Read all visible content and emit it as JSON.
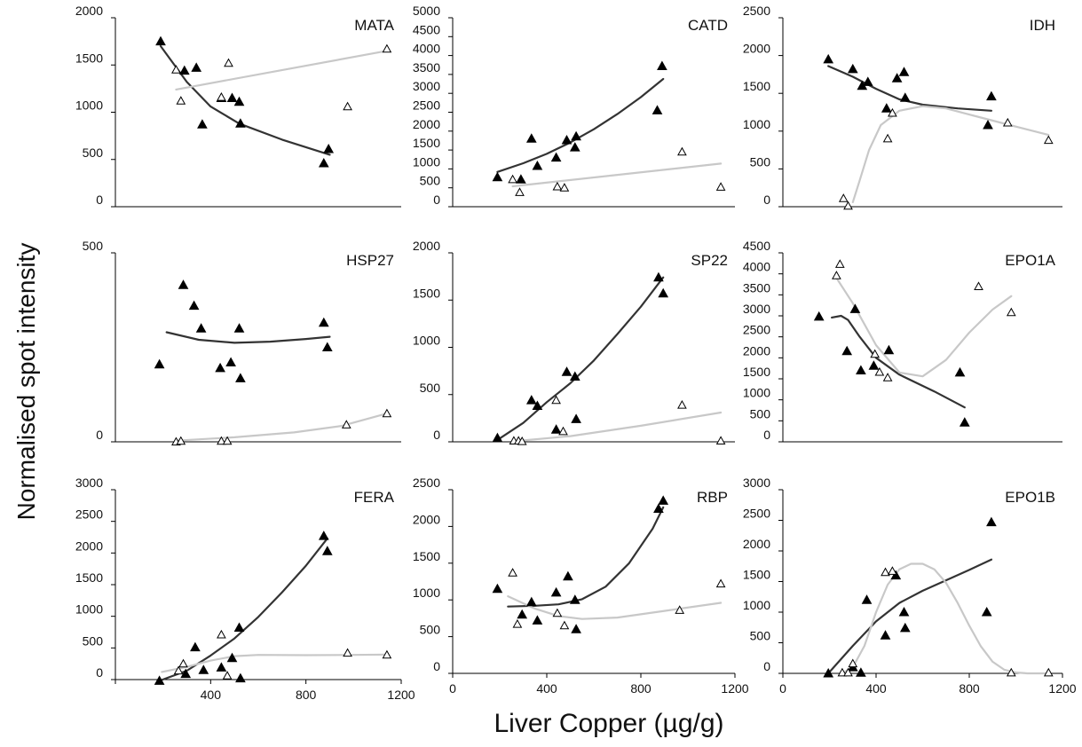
{
  "figure": {
    "ylabel": "Normalised spot intensity",
    "xlabel": "Liver Copper (µg/g)"
  },
  "chart_data": [
    {
      "type": "scatter",
      "title": "MATA",
      "xlim": [
        0,
        1200
      ],
      "ylim": [
        0,
        2000
      ],
      "yticks": [
        0,
        500,
        1000,
        1500,
        2000
      ],
      "xticks": [],
      "ytick_labels": [
        "0",
        "500",
        "1000",
        "1500",
        "2000"
      ],
      "series": [
        {
          "marker": "filled-triangle",
          "color": "#000000",
          "x": [
            190,
            290,
            340,
            365,
            445,
            490,
            520,
            525,
            875,
            895
          ],
          "y": [
            1750,
            1440,
            1470,
            870,
            1150,
            1150,
            1110,
            880,
            460,
            610
          ]
        },
        {
          "marker": "open-triangle",
          "color": "#000000",
          "x": [
            255,
            275,
            445,
            475,
            975,
            1140
          ],
          "y": [
            1450,
            1120,
            1160,
            1520,
            1060,
            1670
          ]
        }
      ],
      "fits": [
        {
          "color": "#333333",
          "x": [
            190,
            300,
            400,
            520,
            700,
            900
          ],
          "y": [
            1700,
            1320,
            1060,
            880,
            710,
            550
          ]
        },
        {
          "color": "#c8c8c8",
          "x": [
            255,
            1140
          ],
          "y": [
            1240,
            1650
          ]
        }
      ]
    },
    {
      "type": "scatter",
      "title": "CATD",
      "xlim": [
        0,
        1200
      ],
      "ylim": [
        0,
        5000
      ],
      "yticks": [
        0,
        500,
        1000,
        1500,
        2000,
        2500,
        3000,
        3500,
        4000,
        4500,
        5000
      ],
      "xticks": [],
      "ytick_labels": [
        "0",
        "500",
        "1000",
        "1500",
        "2000",
        "2500",
        "3000",
        "3500",
        "4000",
        "4500",
        "5000"
      ],
      "series": [
        {
          "marker": "filled-triangle",
          "color": "#000000",
          "x": [
            190,
            290,
            335,
            360,
            440,
            485,
            520,
            525,
            870,
            890
          ],
          "y": [
            780,
            720,
            1800,
            1080,
            1300,
            1760,
            1570,
            1860,
            2550,
            3720
          ]
        },
        {
          "marker": "open-triangle",
          "color": "#000000",
          "x": [
            255,
            285,
            445,
            475,
            975,
            1140
          ],
          "y": [
            720,
            380,
            530,
            500,
            1450,
            520
          ]
        }
      ],
      "fits": [
        {
          "color": "#333333",
          "x": [
            190,
            300,
            400,
            500,
            600,
            700,
            800,
            895
          ],
          "y": [
            920,
            1150,
            1400,
            1700,
            2050,
            2450,
            2900,
            3380
          ]
        },
        {
          "color": "#c8c8c8",
          "x": [
            255,
            1140
          ],
          "y": [
            540,
            1140
          ]
        }
      ]
    },
    {
      "type": "scatter",
      "title": "IDH",
      "xlim": [
        0,
        1200
      ],
      "ylim": [
        0,
        2500
      ],
      "yticks": [
        0,
        500,
        1000,
        1500,
        2000,
        2500
      ],
      "xticks": [],
      "ytick_labels": [
        "0",
        "500",
        "1000",
        "1500",
        "2000",
        "2500"
      ],
      "series": [
        {
          "marker": "filled-triangle",
          "color": "#000000",
          "x": [
            195,
            300,
            340,
            365,
            445,
            490,
            520,
            525,
            880,
            895
          ],
          "y": [
            1950,
            1820,
            1600,
            1650,
            1300,
            1700,
            1780,
            1440,
            1080,
            1460
          ]
        },
        {
          "marker": "open-triangle",
          "color": "#000000",
          "x": [
            260,
            280,
            450,
            470,
            965,
            1140
          ],
          "y": [
            110,
            10,
            900,
            1240,
            1110,
            880
          ]
        }
      ],
      "fits": [
        {
          "color": "#333333",
          "x": [
            195,
            300,
            400,
            500,
            600,
            750,
            895
          ],
          "y": [
            1860,
            1720,
            1560,
            1420,
            1350,
            1300,
            1270
          ]
        },
        {
          "color": "#c8c8c8",
          "x": [
            300,
            330,
            370,
            420,
            500,
            600,
            700,
            850,
            1000,
            1140
          ],
          "y": [
            60,
            350,
            750,
            1080,
            1270,
            1330,
            1300,
            1180,
            1060,
            950
          ]
        }
      ]
    },
    {
      "type": "scatter",
      "title": "HSP27",
      "xlim": [
        0,
        1200
      ],
      "ylim": [
        0,
        500
      ],
      "yticks": [
        0,
        500
      ],
      "xticks": [],
      "ytick_labels": [
        "0",
        "500"
      ],
      "series": [
        {
          "marker": "filled-triangle",
          "color": "#000000",
          "x": [
            185,
            285,
            330,
            360,
            440,
            485,
            520,
            525,
            875,
            890
          ],
          "y": [
            205,
            415,
            360,
            300,
            195,
            210,
            300,
            168,
            315,
            250
          ]
        },
        {
          "marker": "open-triangle",
          "color": "#000000",
          "x": [
            255,
            275,
            445,
            470,
            970,
            1140
          ],
          "y": [
            0,
            2,
            2,
            2,
            45,
            75
          ]
        }
      ],
      "fits": [
        {
          "color": "#333333",
          "x": [
            215,
            350,
            500,
            650,
            800,
            900
          ],
          "y": [
            290,
            270,
            262,
            265,
            272,
            278
          ]
        },
        {
          "color": "#c8c8c8",
          "x": [
            255,
            500,
            750,
            950,
            1140
          ],
          "y": [
            3,
            12,
            25,
            42,
            75
          ]
        }
      ]
    },
    {
      "type": "scatter",
      "title": "SP22",
      "xlim": [
        0,
        1200
      ],
      "ylim": [
        0,
        2000
      ],
      "yticks": [
        0,
        500,
        1000,
        1500,
        2000
      ],
      "xticks": [],
      "ytick_labels": [
        "0",
        "500",
        "1000",
        "1500",
        "2000"
      ],
      "series": [
        {
          "marker": "filled-triangle",
          "color": "#000000",
          "x": [
            190,
            335,
            360,
            440,
            485,
            520,
            525,
            875,
            895
          ],
          "y": [
            40,
            440,
            380,
            130,
            740,
            690,
            240,
            1740,
            1570
          ]
        },
        {
          "marker": "open-triangle",
          "color": "#000000",
          "x": [
            260,
            280,
            295,
            440,
            470,
            975,
            1140
          ],
          "y": [
            10,
            10,
            5,
            440,
            110,
            390,
            10
          ]
        }
      ],
      "fits": [
        {
          "color": "#333333",
          "x": [
            190,
            300,
            400,
            500,
            600,
            700,
            800,
            895
          ],
          "y": [
            20,
            200,
            420,
            620,
            860,
            1140,
            1430,
            1740
          ]
        },
        {
          "color": "#c8c8c8",
          "x": [
            255,
            500,
            800,
            1140
          ],
          "y": [
            5,
            60,
            170,
            310
          ]
        }
      ]
    },
    {
      "type": "scatter",
      "title": "EPO1A",
      "xlim": [
        0,
        1200
      ],
      "ylim": [
        0,
        4500
      ],
      "yticks": [
        0,
        500,
        1000,
        1500,
        2000,
        2500,
        3000,
        3500,
        4000,
        4500
      ],
      "xticks": [],
      "ytick_labels": [
        "0",
        "500",
        "1000",
        "1500",
        "2000",
        "2500",
        "3000",
        "3500",
        "4000",
        "4500"
      ],
      "series": [
        {
          "marker": "filled-triangle",
          "color": "#000000",
          "x": [
            155,
            275,
            310,
            335,
            390,
            455,
            760,
            780
          ],
          "y": [
            2980,
            2160,
            3160,
            1700,
            1810,
            2180,
            1650,
            460
          ]
        },
        {
          "marker": "open-triangle",
          "color": "#000000",
          "x": [
            230,
            245,
            395,
            415,
            450,
            840,
            980
          ],
          "y": [
            3960,
            4230,
            2090,
            1660,
            1530,
            3700,
            3080
          ]
        }
      ],
      "fits": [
        {
          "color": "#333333",
          "x": [
            210,
            250,
            280,
            330,
            400,
            500,
            650,
            780
          ],
          "y": [
            2960,
            3000,
            2900,
            2500,
            2000,
            1600,
            1200,
            820
          ]
        },
        {
          "color": "#c8c8c8",
          "x": [
            230,
            300,
            400,
            500,
            600,
            700,
            800,
            900,
            980
          ],
          "y": [
            3900,
            3300,
            2300,
            1650,
            1560,
            1950,
            2600,
            3150,
            3470
          ]
        }
      ]
    },
    {
      "type": "scatter",
      "title": "FERA",
      "xlim": [
        0,
        1200
      ],
      "ylim": [
        0,
        3000
      ],
      "yticks": [
        0,
        500,
        1000,
        1500,
        2000,
        2500,
        3000
      ],
      "xticks": [
        0,
        400,
        800,
        1200
      ],
      "ytick_labels": [
        "0",
        "500",
        "1000",
        "1500",
        "2000",
        "2500",
        "3000"
      ],
      "xtick_labels": [
        "",
        "400",
        "800",
        "1200"
      ],
      "series": [
        {
          "marker": "filled-triangle",
          "color": "#000000",
          "x": [
            185,
            295,
            335,
            370,
            445,
            490,
            520,
            525,
            875,
            890
          ],
          "y": [
            -20,
            90,
            510,
            150,
            190,
            340,
            820,
            20,
            2270,
            2030
          ]
        },
        {
          "marker": "open-triangle",
          "color": "#000000",
          "x": [
            265,
            285,
            445,
            470,
            975,
            1140
          ],
          "y": [
            140,
            250,
            710,
            60,
            420,
            390
          ]
        }
      ],
      "fits": [
        {
          "color": "#333333",
          "x": [
            185,
            300,
            400,
            500,
            600,
            700,
            800,
            890
          ],
          "y": [
            -20,
            140,
            380,
            650,
            990,
            1380,
            1800,
            2230
          ]
        },
        {
          "color": "#c8c8c8",
          "x": [
            195,
            300,
            400,
            500,
            600,
            800,
            1000,
            1140
          ],
          "y": [
            120,
            200,
            300,
            370,
            390,
            385,
            390,
            395
          ]
        }
      ]
    },
    {
      "type": "scatter",
      "title": "RBP",
      "xlim": [
        0,
        1200
      ],
      "ylim": [
        0,
        2500
      ],
      "yticks": [
        0,
        500,
        1000,
        1500,
        2000,
        2500
      ],
      "xticks": [
        0,
        400,
        800,
        1200
      ],
      "ytick_labels": [
        "0",
        "500",
        "1000",
        "1500",
        "2000",
        "2500"
      ],
      "xtick_labels": [
        "0",
        "400",
        "800",
        "1200"
      ],
      "series": [
        {
          "marker": "filled-triangle",
          "color": "#000000",
          "x": [
            190,
            295,
            335,
            360,
            440,
            490,
            520,
            525,
            875,
            895
          ],
          "y": [
            1150,
            800,
            970,
            720,
            1100,
            1320,
            1000,
            600,
            2240,
            2350
          ]
        },
        {
          "marker": "open-triangle",
          "color": "#000000",
          "x": [
            255,
            275,
            445,
            475,
            965,
            1140
          ],
          "y": [
            1370,
            670,
            820,
            650,
            860,
            1220
          ]
        }
      ],
      "fits": [
        {
          "color": "#333333",
          "x": [
            235,
            350,
            450,
            550,
            650,
            750,
            850,
            895
          ],
          "y": [
            910,
            920,
            940,
            1010,
            1180,
            1500,
            1970,
            2260
          ]
        },
        {
          "color": "#c8c8c8",
          "x": [
            235,
            350,
            450,
            550,
            700,
            900,
            1140
          ],
          "y": [
            1050,
            880,
            780,
            740,
            760,
            850,
            960
          ]
        }
      ]
    },
    {
      "type": "scatter",
      "title": "EPO1B",
      "xlim": [
        0,
        1200
      ],
      "ylim": [
        0,
        3000
      ],
      "yticks": [
        0,
        500,
        1000,
        1500,
        2000,
        2500,
        3000
      ],
      "xticks": [
        0,
        400,
        800,
        1200
      ],
      "ytick_labels": [
        "0",
        "500",
        "1000",
        "1500",
        "2000",
        "2500",
        "3000"
      ],
      "xtick_labels": [
        "0",
        "400",
        "800",
        "1200"
      ],
      "series": [
        {
          "marker": "filled-triangle",
          "color": "#000000",
          "x": [
            195,
            300,
            335,
            360,
            440,
            485,
            520,
            525,
            875,
            895
          ],
          "y": [
            0,
            100,
            10,
            1200,
            620,
            1600,
            1000,
            740,
            1000,
            2470
          ]
        },
        {
          "marker": "open-triangle",
          "color": "#000000",
          "x": [
            255,
            280,
            300,
            440,
            470,
            980,
            1140
          ],
          "y": [
            10,
            10,
            160,
            1650,
            1670,
            10,
            10
          ]
        }
      ],
      "fits": [
        {
          "color": "#333333",
          "x": [
            195,
            300,
            400,
            500,
            600,
            700,
            800,
            895
          ],
          "y": [
            0,
            450,
            850,
            1150,
            1350,
            1520,
            1690,
            1860
          ]
        },
        {
          "color": "#c8c8c8",
          "x": [
            255,
            300,
            350,
            400,
            450,
            500,
            550,
            600,
            650,
            700,
            750,
            800,
            850,
            900,
            950,
            1000,
            1050,
            1140
          ],
          "y": [
            0,
            100,
            450,
            1000,
            1450,
            1700,
            1790,
            1790,
            1700,
            1480,
            1150,
            780,
            440,
            190,
            60,
            15,
            0,
            0
          ]
        }
      ]
    }
  ]
}
